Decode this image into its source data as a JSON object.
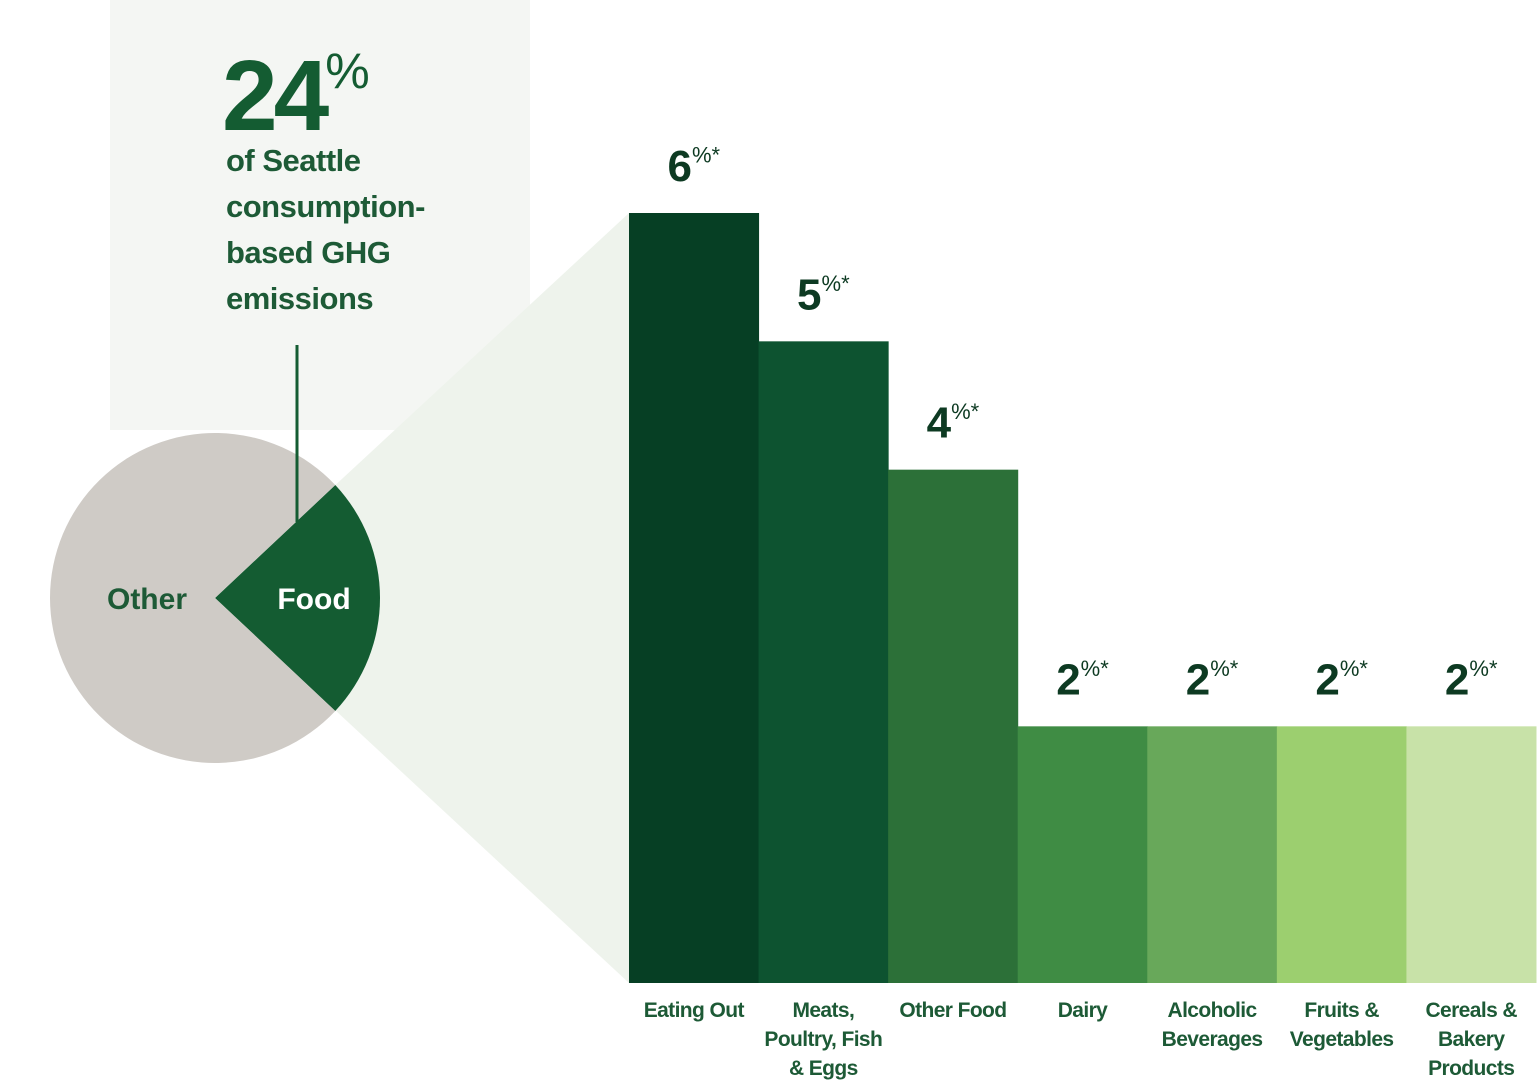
{
  "chart_data": [
    {
      "type": "pie",
      "categories": [
        "Food",
        "Other"
      ],
      "values": [
        24,
        76
      ],
      "value_labels": [
        "24%",
        null
      ],
      "colors": [
        "#145c32",
        "#cfcbc6"
      ],
      "annotation": "of Seattle consumption-based GHG emissions"
    },
    {
      "type": "bar",
      "categories": [
        "Eating Out",
        "Meats, Poultry, Fish & Eggs",
        "Other Food",
        "Dairy",
        "Alcoholic Beverages",
        "Fruits & Vegetables",
        "Cereals & Bakery Products"
      ],
      "values": [
        6,
        5,
        4,
        2,
        2,
        2,
        2
      ],
      "value_labels": [
        "6%*",
        "5%*",
        "4%*",
        "2%*",
        "2%*",
        "2%*",
        "2%*"
      ],
      "colors": [
        "#063f24",
        "#0d5330",
        "#2c7038",
        "#3f8c44",
        "#68a85a",
        "#9ccf6f",
        "#c8e2a8"
      ],
      "ylim": [
        0,
        6
      ]
    }
  ]
}
